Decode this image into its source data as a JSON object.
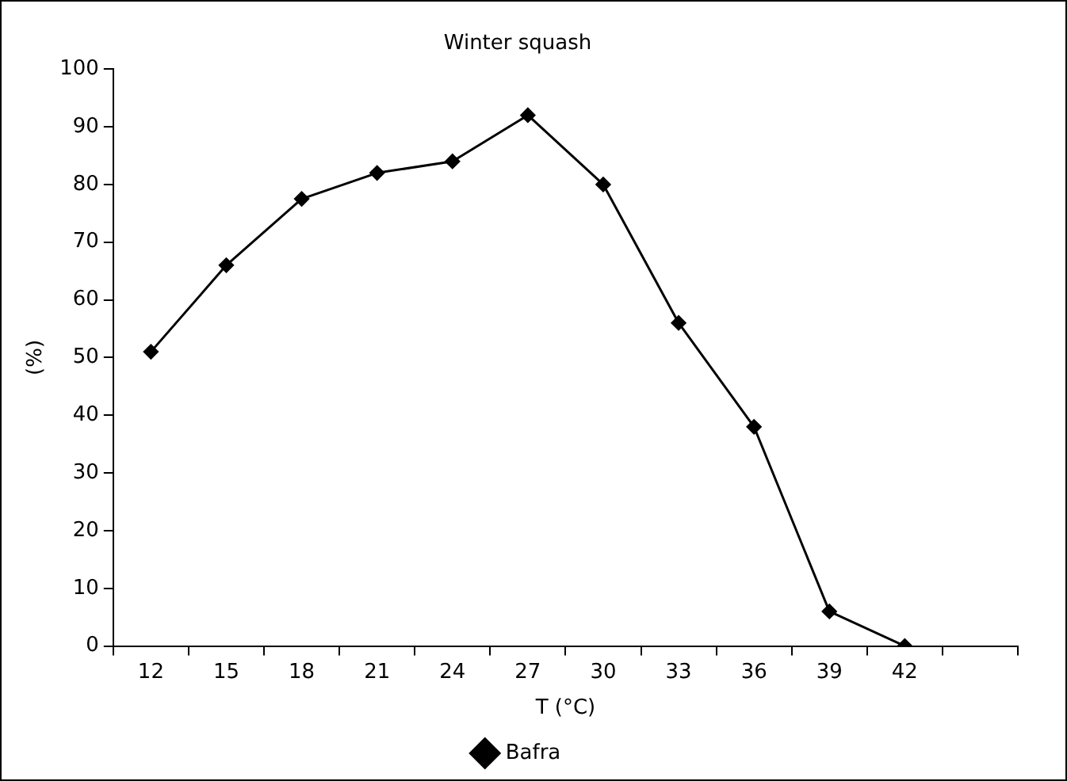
{
  "chart_data": {
    "type": "line",
    "title": "Winter squash",
    "xlabel": "T (°C)",
    "ylabel": "(%)",
    "categories": [
      "12",
      "15",
      "18",
      "21",
      "24",
      "27",
      "30",
      "33",
      "36",
      "39",
      "42",
      null
    ],
    "series": [
      {
        "name": "Bafra",
        "color": "#000000",
        "values": [
          51,
          66,
          77.5,
          82,
          84,
          92,
          80,
          56,
          38,
          6,
          0,
          null
        ]
      }
    ],
    "ylim": [
      0,
      100
    ],
    "yticks": [
      0,
      10,
      20,
      30,
      40,
      50,
      60,
      70,
      80,
      90,
      100
    ],
    "grid": false,
    "legend": "bottom",
    "marker": "diamond",
    "line_style": "solid"
  }
}
